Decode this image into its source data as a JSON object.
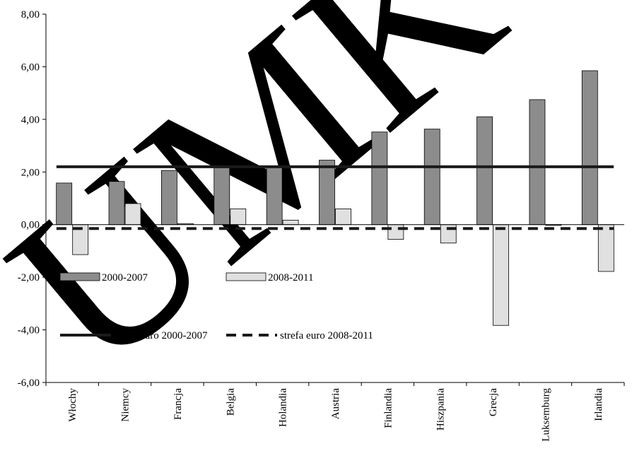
{
  "watermark": {
    "text": "UMK",
    "color": "#e9e9e9"
  },
  "colors": {
    "series_2000_2007": "#8c8c8c",
    "series_2008_2011": "#e0e0e0",
    "bar_stroke": "#000000",
    "euro_line": "#1a1a1a",
    "axis": "#000000"
  },
  "chart_data": {
    "type": "bar",
    "title": "",
    "xlabel": "",
    "ylabel": "",
    "ylim": [
      -6,
      8
    ],
    "yticks": [
      {
        "value": 8,
        "label": "8,00"
      },
      {
        "value": 6,
        "label": "6,00"
      },
      {
        "value": 4,
        "label": "4,00"
      },
      {
        "value": 2,
        "label": "2,00"
      },
      {
        "value": 0,
        "label": "0,00"
      },
      {
        "value": -2,
        "label": "-2,00"
      },
      {
        "value": -4,
        "label": "-4,00"
      },
      {
        "value": -6,
        "label": "-6,00"
      }
    ],
    "grid": false,
    "categories": [
      "Włochy",
      "Niemcy",
      "Francja",
      "Belgia",
      "Holandia",
      "Austria",
      "Finlandia",
      "Hiszpania",
      "Grecja",
      "Luksemburg",
      "Irlandia"
    ],
    "series": [
      {
        "name": "2000-2007",
        "values": [
          1.58,
          1.64,
          2.06,
          2.23,
          2.19,
          2.45,
          3.52,
          3.63,
          4.1,
          4.75,
          5.85
        ]
      },
      {
        "name": "2008-2011",
        "values": [
          -1.14,
          0.8,
          0.04,
          0.6,
          0.17,
          0.6,
          -0.56,
          -0.7,
          -3.83,
          -0.03,
          -1.78
        ]
      }
    ],
    "reference_lines": [
      {
        "name": "strefa euro 2000-2007",
        "value": 2.2,
        "style": "solid"
      },
      {
        "name": "strefa euro 2008-2011",
        "value": -0.15,
        "style": "dashed"
      }
    ],
    "legend": {
      "placement": "inside-left",
      "entries": [
        {
          "label": "2000-2007",
          "kind": "bar",
          "series": 0
        },
        {
          "label": "2008-2011",
          "kind": "bar",
          "series": 1
        },
        {
          "label": "strefa euro 2000-2007",
          "kind": "line",
          "line": 0
        },
        {
          "label": "strefa euro 2008-2011",
          "kind": "line",
          "line": 1
        }
      ]
    }
  }
}
